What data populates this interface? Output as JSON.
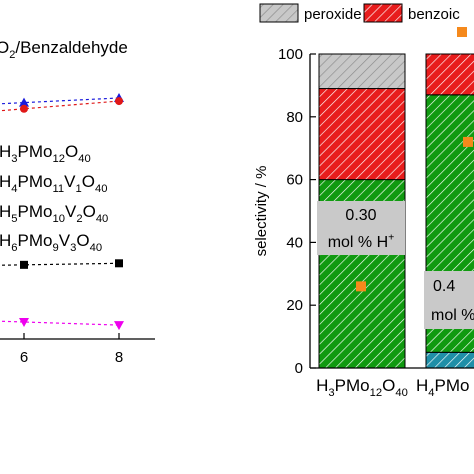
{
  "chart_data": [
    {
      "type": "line",
      "panel": "left (cropped)",
      "title": "O2/Benzaldehyde",
      "title_parts": {
        "prefix": "O",
        "sub": "2",
        "rest": "/Benzaldehyde"
      },
      "xlabel": "",
      "x_ticks": [
        "6",
        "8"
      ],
      "xlim": [
        3.8,
        9.2
      ],
      "ylim": [
        0,
        1
      ],
      "legend": [
        {
          "parts": [
            [
              "H",
              ""
            ],
            [
              "3",
              "sub"
            ],
            [
              "PMo",
              ""
            ],
            [
              "12",
              "sub"
            ],
            [
              "O",
              ""
            ],
            [
              "40",
              "sub"
            ]
          ]
        },
        {
          "parts": [
            [
              "H",
              ""
            ],
            [
              "4",
              "sub"
            ],
            [
              "PMo",
              ""
            ],
            [
              "11",
              "sub"
            ],
            [
              "V",
              ""
            ],
            [
              "1",
              "sub"
            ],
            [
              "O",
              ""
            ],
            [
              "40",
              "sub"
            ]
          ]
        },
        {
          "parts": [
            [
              "H",
              ""
            ],
            [
              "5",
              "sub"
            ],
            [
              "PMo",
              ""
            ],
            [
              "10",
              "sub"
            ],
            [
              "V",
              ""
            ],
            [
              "2",
              "sub"
            ],
            [
              "O",
              ""
            ],
            [
              "40",
              "sub"
            ]
          ]
        },
        {
          "parts": [
            [
              "H",
              ""
            ],
            [
              "6",
              "sub"
            ],
            [
              "PMo",
              ""
            ],
            [
              "9",
              "sub"
            ],
            [
              "V",
              ""
            ],
            [
              "3",
              "sub"
            ],
            [
              "O",
              ""
            ],
            [
              "40",
              "sub"
            ]
          ]
        }
      ],
      "series": [
        {
          "color": "#1a1adc",
          "marker": "triangle-up",
          "x": [
            6,
            8
          ],
          "y": [
            0.765,
            0.78
          ]
        },
        {
          "color": "#e01818",
          "marker": "circle",
          "x": [
            6,
            8
          ],
          "y": [
            0.745,
            0.77
          ]
        },
        {
          "color": "#000000",
          "marker": "square",
          "x": [
            6,
            8
          ],
          "y": [
            0.24,
            0.245
          ]
        },
        {
          "color": "#ee00ee",
          "marker": "triangle-down",
          "x": [
            6,
            8
          ],
          "y": [
            0.055,
            0.045
          ]
        }
      ]
    },
    {
      "type": "bar",
      "stacked": true,
      "ylabel": "selectivity / %",
      "ylim": [
        0,
        100
      ],
      "y_ticks": [
        0,
        20,
        40,
        60,
        80,
        100
      ],
      "legend": [
        {
          "label": "peroxide",
          "color": "#c8c8c8",
          "hatch": "diagonal"
        },
        {
          "label": "benzoic",
          "color": "#e81c1c",
          "hatch": "diagonal"
        }
      ],
      "categories": [
        {
          "parts": [
            [
              "H",
              ""
            ],
            [
              "3",
              "sub"
            ],
            [
              "PMo",
              ""
            ],
            [
              "12",
              "sub"
            ],
            [
              "O",
              ""
            ],
            [
              "40",
              "sub"
            ]
          ]
        },
        {
          "parts": [
            [
              "H",
              ""
            ],
            [
              "4",
              "sub"
            ],
            [
              "PMo",
              ""
            ]
          ]
        }
      ],
      "stacks": [
        {
          "segments": [
            {
              "color": "#109a10",
              "value": 60
            },
            {
              "color": "#e81c1c",
              "value": 29
            },
            {
              "color": "#c8c8c8",
              "value": 11
            }
          ]
        },
        {
          "segments": [
            {
              "color": "#1f8fa8",
              "value": 5
            },
            {
              "color": "#109a10",
              "value": 82
            },
            {
              "color": "#e81c1c",
              "value": 13
            }
          ]
        }
      ],
      "points": {
        "color": "#f5891c",
        "values": [
          26,
          72
        ]
      },
      "annotations": [
        {
          "line1": "0.30",
          "line2": "mol % H",
          "sup": "+"
        },
        {
          "line1": "0.4",
          "line2": "mol %"
        }
      ]
    }
  ]
}
